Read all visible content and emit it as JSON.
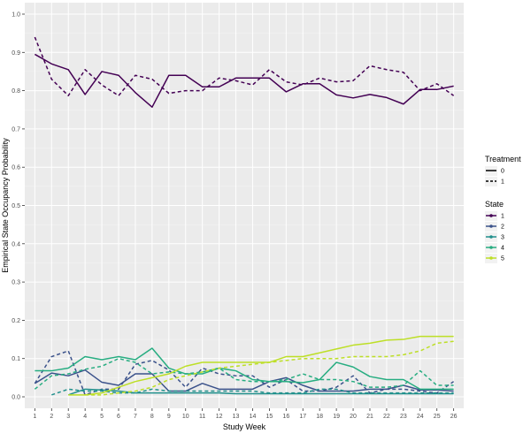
{
  "chart_data": {
    "type": "line",
    "title": "",
    "xlabel": "Study Week",
    "ylabel": "Empirical State Occupancy Probability",
    "x": [
      1,
      2,
      3,
      4,
      5,
      6,
      7,
      8,
      9,
      10,
      11,
      12,
      13,
      14,
      15,
      16,
      17,
      18,
      19,
      20,
      21,
      22,
      23,
      24,
      25,
      26
    ],
    "x_tick_labels": [
      "1",
      "2",
      "3",
      "4",
      "5",
      "6",
      "7",
      "8",
      "9",
      "10",
      "11",
      "12",
      "13",
      "14",
      "15",
      "16",
      "17",
      "18",
      "19",
      "20",
      "21",
      "22",
      "23",
      "24",
      "25",
      "26"
    ],
    "ylim": [
      -0.03,
      1.03
    ],
    "y_ticks": [
      0.0,
      0.1,
      0.2,
      0.3,
      0.4,
      0.5,
      0.6,
      0.7,
      0.8,
      0.9,
      1.0
    ],
    "y_tick_labels": [
      "0.0",
      "0.1",
      "0.2",
      "0.3",
      "0.4",
      "0.5",
      "0.6",
      "0.7",
      "0.8",
      "0.9",
      "1.0"
    ],
    "grid": true,
    "legend_placement": "right",
    "legends": {
      "treatment": {
        "title": "Treatment",
        "items": [
          {
            "label": "0",
            "linetype": "solid"
          },
          {
            "label": "1",
            "linetype": "dashed"
          }
        ]
      },
      "state": {
        "title": "State",
        "items": [
          {
            "label": "1",
            "color": "#440154"
          },
          {
            "label": "2",
            "color": "#3b528b"
          },
          {
            "label": "3",
            "color": "#21908c"
          },
          {
            "label": "4",
            "color": "#27ad81"
          },
          {
            "label": "5",
            "color": "#bddf26"
          }
        ]
      }
    },
    "series": [
      {
        "state": "1",
        "treatment": "0",
        "color": "#440154",
        "linetype": "solid",
        "values": [
          0.895,
          0.87,
          0.855,
          0.79,
          0.85,
          0.84,
          0.795,
          0.757,
          0.84,
          0.84,
          0.81,
          0.81,
          0.833,
          0.833,
          0.833,
          0.797,
          0.818,
          0.818,
          0.789,
          0.781,
          0.79,
          0.782,
          0.765,
          0.803,
          0.803,
          0.812
        ]
      },
      {
        "state": "1",
        "treatment": "1",
        "color": "#440154",
        "linetype": "dashed",
        "values": [
          0.94,
          0.83,
          0.787,
          0.855,
          0.815,
          0.787,
          0.84,
          0.83,
          0.793,
          0.8,
          0.8,
          0.833,
          0.826,
          0.815,
          0.855,
          0.823,
          0.815,
          0.833,
          0.823,
          0.826,
          0.865,
          0.855,
          0.848,
          0.8,
          0.818,
          0.787
        ]
      },
      {
        "state": "2",
        "treatment": "0",
        "color": "#3b528b",
        "linetype": "solid",
        "values": [
          0.035,
          0.062,
          0.055,
          0.07,
          0.038,
          0.03,
          0.06,
          0.06,
          0.015,
          0.015,
          0.035,
          0.02,
          0.02,
          0.02,
          0.04,
          0.05,
          0.03,
          0.015,
          0.015,
          0.015,
          0.02,
          0.02,
          0.03,
          0.018,
          0.018,
          0.015
        ]
      },
      {
        "state": "2",
        "treatment": "1",
        "color": "#3b528b",
        "linetype": "dashed",
        "values": [
          0.035,
          0.105,
          0.12,
          0.005,
          0.02,
          0.02,
          0.085,
          0.095,
          0.07,
          0.025,
          0.075,
          0.06,
          0.055,
          0.055,
          0.025,
          0.045,
          0.015,
          0.015,
          0.025,
          0.055,
          0.01,
          0.02,
          0.02,
          0.015,
          0.01,
          0.04
        ]
      },
      {
        "state": "3",
        "treatment": "0",
        "color": "#21908c",
        "linetype": "solid",
        "values": [
          null,
          null,
          0.005,
          0.02,
          0.018,
          0.015,
          0.01,
          0.01,
          0.01,
          0.01,
          0.01,
          0.01,
          0.008,
          0.008,
          0.008,
          0.008,
          0.008,
          0.008,
          0.008,
          0.008,
          0.008,
          0.008,
          0.008,
          0.008,
          0.008,
          0.008
        ]
      },
      {
        "state": "3",
        "treatment": "1",
        "color": "#21908c",
        "linetype": "dashed",
        "values": [
          null,
          0.005,
          0.02,
          0.015,
          0.015,
          0.01,
          0.01,
          0.02,
          0.015,
          0.015,
          0.015,
          0.015,
          0.015,
          0.015,
          0.01,
          0.01,
          0.01,
          0.02,
          0.02,
          0.01,
          0.01,
          0.01,
          0.01,
          0.01,
          0.01,
          0.01
        ]
      },
      {
        "state": "4",
        "treatment": "0",
        "color": "#27ad81",
        "linetype": "solid",
        "values": [
          0.068,
          0.068,
          0.075,
          0.105,
          0.097,
          0.105,
          0.097,
          0.127,
          0.075,
          0.06,
          0.06,
          0.075,
          0.068,
          0.045,
          0.04,
          0.04,
          0.037,
          0.045,
          0.09,
          0.078,
          0.053,
          0.045,
          0.045,
          0.02,
          0.02,
          0.02
        ]
      },
      {
        "state": "4",
        "treatment": "1",
        "color": "#27ad81",
        "linetype": "dashed",
        "values": [
          0.02,
          0.055,
          0.06,
          0.072,
          0.08,
          0.1,
          0.09,
          0.06,
          0.065,
          0.06,
          0.065,
          0.075,
          0.045,
          0.04,
          0.04,
          0.045,
          0.06,
          0.045,
          0.045,
          0.04,
          0.025,
          0.025,
          0.03,
          0.068,
          0.03,
          0.03
        ]
      },
      {
        "state": "5",
        "treatment": "0",
        "color": "#bddf26",
        "linetype": "solid",
        "values": [
          null,
          null,
          0.005,
          0.005,
          0.01,
          0.025,
          0.04,
          0.05,
          0.06,
          0.08,
          0.09,
          0.09,
          0.09,
          0.09,
          0.09,
          0.105,
          0.105,
          0.115,
          0.125,
          0.135,
          0.14,
          0.148,
          0.15,
          0.158,
          0.158,
          0.158
        ]
      },
      {
        "state": "5",
        "treatment": "1",
        "color": "#bddf26",
        "linetype": "dashed",
        "values": [
          null,
          null,
          null,
          0.005,
          0.005,
          0.01,
          0.015,
          0.025,
          0.045,
          0.055,
          0.065,
          0.075,
          0.08,
          0.085,
          0.09,
          0.095,
          0.1,
          0.1,
          0.1,
          0.105,
          0.105,
          0.105,
          0.11,
          0.12,
          0.14,
          0.145
        ]
      }
    ]
  }
}
